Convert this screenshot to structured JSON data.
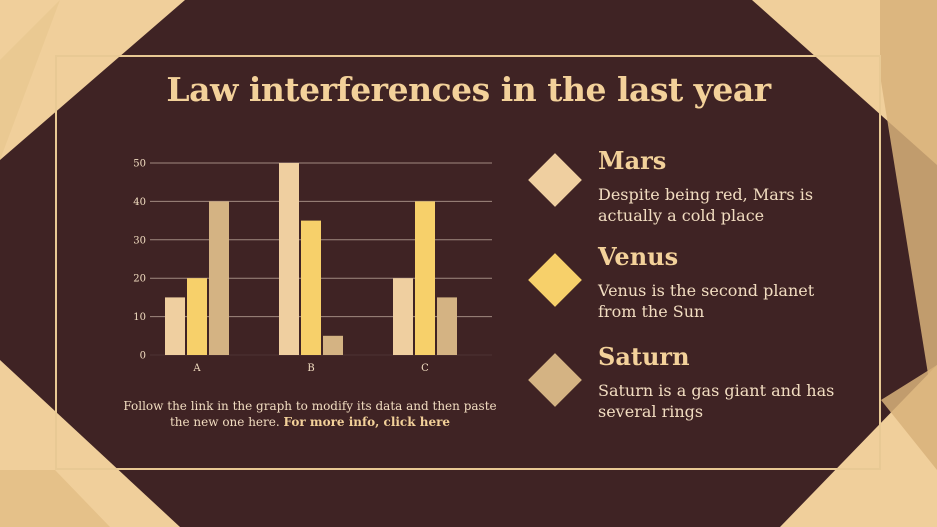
{
  "title": "Law interferences in the last year",
  "caption": {
    "text": "Follow the link in the graph to modify its data and then paste the new one here. ",
    "link": "For more info, click here"
  },
  "colors": {
    "background": "#3f2324",
    "corner_light": "#f0cf9b",
    "corner_dark": "#d8b27a",
    "frame": "#e8c994",
    "mars": "#efcfa0",
    "venus": "#f7d06a",
    "saturn": "#d4b383",
    "title": "#f3d19a",
    "text": "#f1dcc0"
  },
  "legend": [
    {
      "name": "Mars",
      "description": "Despite being red, Mars is actually a cold place",
      "color": "#efcfa0"
    },
    {
      "name": "Venus",
      "description": "Venus is the second planet from the Sun",
      "color": "#f7d06a"
    },
    {
      "name": "Saturn",
      "description": "Saturn is a gas giant and has several rings",
      "color": "#d4b383"
    }
  ],
  "chart_data": {
    "type": "bar",
    "categories": [
      "A",
      "B",
      "C"
    ],
    "series": [
      {
        "name": "Mars",
        "values": [
          15,
          50,
          20
        ],
        "color": "#efcfa0"
      },
      {
        "name": "Venus",
        "values": [
          20,
          35,
          40
        ],
        "color": "#f7d06a"
      },
      {
        "name": "Saturn",
        "values": [
          40,
          5,
          15
        ],
        "color": "#d4b383"
      }
    ],
    "yticks": [
      0,
      10,
      20,
      30,
      40,
      50
    ],
    "ylim": [
      0,
      50
    ],
    "grid": true,
    "xlabel": "",
    "ylabel": ""
  }
}
